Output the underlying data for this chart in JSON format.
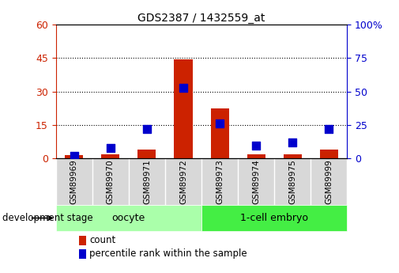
{
  "title": "GDS2387 / 1432559_at",
  "samples": [
    "GSM89969",
    "GSM89970",
    "GSM89971",
    "GSM89972",
    "GSM89973",
    "GSM89974",
    "GSM89975",
    "GSM89999"
  ],
  "count_values": [
    1.5,
    2.0,
    4.0,
    44.5,
    22.5,
    2.0,
    2.0,
    4.0
  ],
  "percentile_values": [
    2.0,
    8.0,
    22.0,
    53.0,
    26.0,
    10.0,
    12.0,
    22.0
  ],
  "groups": [
    {
      "label": "oocyte",
      "n_samples": 4,
      "color": "#aaffaa"
    },
    {
      "label": "1-cell embryo",
      "n_samples": 4,
      "color": "#44ee44"
    }
  ],
  "left_ylim": [
    0,
    60
  ],
  "right_ylim": [
    0,
    100
  ],
  "left_yticks": [
    0,
    15,
    30,
    45,
    60
  ],
  "right_yticks": [
    0,
    25,
    50,
    75,
    100
  ],
  "left_yticklabels": [
    "0",
    "15",
    "30",
    "45",
    "60"
  ],
  "right_yticklabels": [
    "0",
    "25",
    "50",
    "75",
    "100%"
  ],
  "bar_color": "#cc2200",
  "dot_color": "#0000cc",
  "bar_width": 0.5,
  "dot_size": 45,
  "grid_yticks": [
    15,
    30,
    45
  ],
  "xlabel_stage": "development stage",
  "legend_count": "count",
  "legend_percentile": "percentile rank within the sample",
  "figsize": [
    5.05,
    3.45
  ],
  "dpi": 100,
  "tick_gray": "#cccccc",
  "sample_box_color": "#d8d8d8"
}
